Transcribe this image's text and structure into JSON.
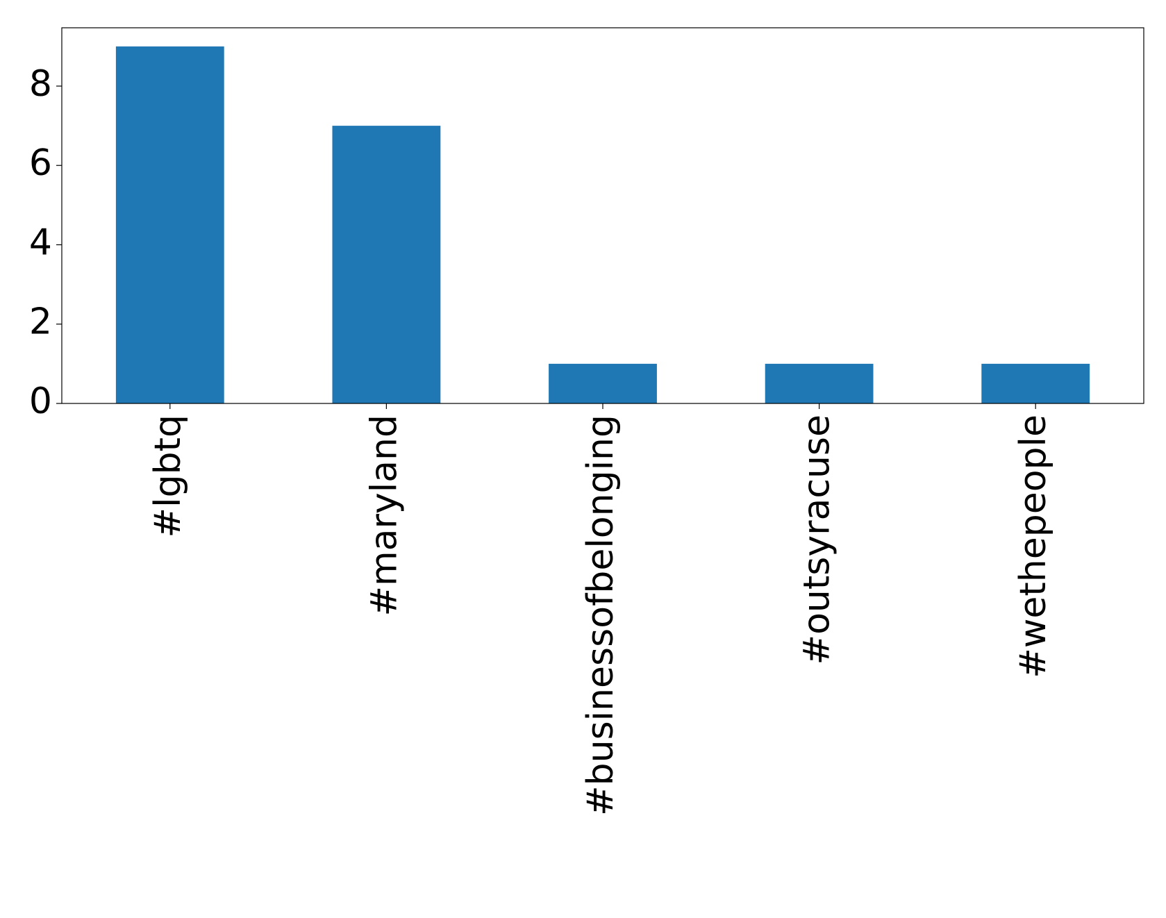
{
  "chart_data": {
    "type": "bar",
    "categories": [
      "#lgbtq",
      "#maryland",
      "#businessofbelonging",
      "#outsyracuse",
      "#wethepeople"
    ],
    "values": [
      9,
      7,
      1,
      1,
      1
    ],
    "color": "#1f77b4",
    "ylim": [
      0,
      9.47
    ],
    "yticks": [
      0,
      2,
      4,
      6,
      8
    ],
    "grid": false
  }
}
